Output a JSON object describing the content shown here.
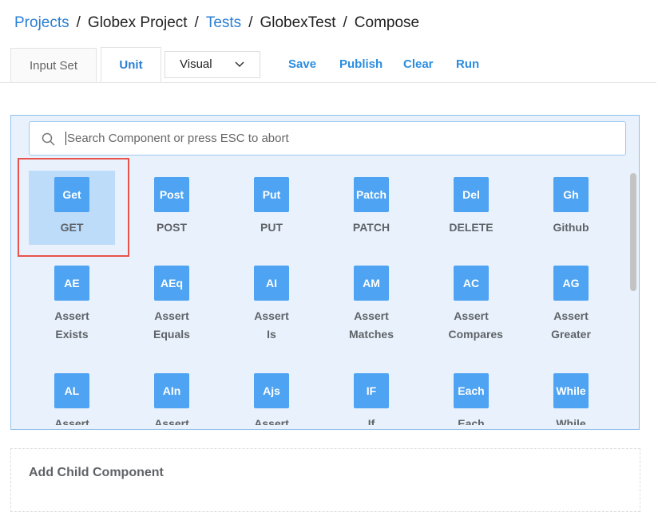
{
  "breadcrumb": {
    "separator": "/",
    "items": [
      {
        "label": "Projects",
        "link": true
      },
      {
        "label": "Globex Project",
        "link": false
      },
      {
        "label": "Tests",
        "link": true
      },
      {
        "label": "GlobexTest",
        "link": false
      },
      {
        "label": "Compose",
        "link": false
      }
    ]
  },
  "tabs": [
    {
      "label": "Input Set",
      "active": false
    },
    {
      "label": "Unit",
      "active": true
    }
  ],
  "view_select": "Visual",
  "actions": [
    "Save",
    "Publish",
    "Clear",
    "Run"
  ],
  "search": {
    "placeholder": "Search Component or press ESC to abort"
  },
  "components": [
    {
      "icon": "Get",
      "label": "GET",
      "selected": true
    },
    {
      "icon": "Post",
      "label": "POST"
    },
    {
      "icon": "Put",
      "label": "PUT"
    },
    {
      "icon": "Patch",
      "label": "PATCH"
    },
    {
      "icon": "Del",
      "label": "DELETE"
    },
    {
      "icon": "Gh",
      "label": "Github"
    },
    {
      "icon": "AE",
      "label": "Assert Exists"
    },
    {
      "icon": "AEq",
      "label": "Assert Equals"
    },
    {
      "icon": "AI",
      "label": "Assert Is"
    },
    {
      "icon": "AM",
      "label": "Assert Matches"
    },
    {
      "icon": "AC",
      "label": "Assert Compares"
    },
    {
      "icon": "AG",
      "label": "Assert Greater"
    },
    {
      "icon": "AL",
      "label": "Assert Less"
    },
    {
      "icon": "AIn",
      "label": "Assert In"
    },
    {
      "icon": "Ajs",
      "label": "Assert Valid"
    },
    {
      "icon": "IF",
      "label": "If"
    },
    {
      "icon": "Each",
      "label": "Each"
    },
    {
      "icon": "While",
      "label": "While"
    }
  ],
  "add_child": "Add Child Component"
}
